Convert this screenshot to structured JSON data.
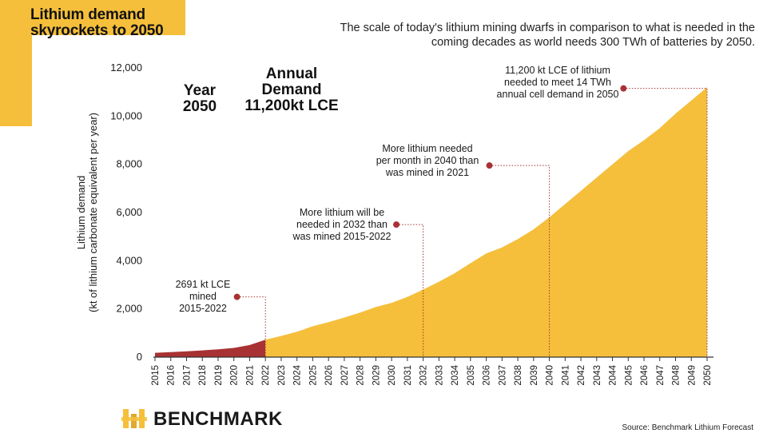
{
  "header": {
    "title": "Lithium demand\nskyrockets to 2050",
    "subtitle": "The scale of today's lithium mining dwarfs in comparison to what is needed in the\ncoming decades as world needs 300 TWh of batteries by 2050."
  },
  "colors": {
    "accent": "#F5BF3B",
    "historical": "#A83233",
    "forecast": "#F5BF3B",
    "marker": "#A83233"
  },
  "chart_data": {
    "type": "area",
    "ylabel": "Lithium demand\n(kt of lithium carbonate equivalent per year)",
    "ylim": [
      0,
      12000
    ],
    "yticks": [
      0,
      2000,
      4000,
      6000,
      8000,
      10000,
      12000
    ],
    "ytick_labels": [
      "0",
      "2,000",
      "4,000",
      "6,000",
      "8,000",
      "10,000",
      "12,000"
    ],
    "x": [
      2015,
      2016,
      2017,
      2018,
      2019,
      2020,
      2021,
      2022,
      2023,
      2024,
      2025,
      2026,
      2027,
      2028,
      2029,
      2030,
      2031,
      2032,
      2033,
      2034,
      2035,
      2036,
      2037,
      2038,
      2039,
      2040,
      2041,
      2042,
      2043,
      2044,
      2045,
      2046,
      2047,
      2048,
      2049,
      2050
    ],
    "values": [
      180,
      210,
      240,
      280,
      320,
      380,
      500,
      720,
      880,
      1050,
      1280,
      1450,
      1640,
      1850,
      2080,
      2250,
      2500,
      2800,
      3130,
      3480,
      3900,
      4300,
      4550,
      4900,
      5300,
      5800,
      6350,
      6900,
      7450,
      8000,
      8550,
      9000,
      9500,
      10100,
      10650,
      11200
    ],
    "series": [
      {
        "name": "",
        "from": 2015,
        "to": 2022,
        "color": "#A83233"
      },
      {
        "name": "",
        "from": 2022,
        "to": 2050,
        "color": "#F5BF3B"
      }
    ],
    "annotations": [
      {
        "text": "Year\n2050",
        "align": "center"
      },
      {
        "text": "Annual\nDemand\n11,200kt LCE",
        "align": "center"
      },
      {
        "text": "2691 kt LCE\nmined\n2015-2022",
        "year": 2022,
        "marker_x": 2020.2,
        "marker_y": 2500
      },
      {
        "text": "More lithium will be\nneeded in 2032 than\nwas mined 2015-2022",
        "year": 2032,
        "marker_x": 2030.3,
        "marker_y": 5500
      },
      {
        "text": "More lithium needed\nper month in 2040 than\nwas mined in 2021",
        "year": 2040,
        "marker_x": 2036.2,
        "marker_y": 7950
      },
      {
        "text": "11,200 kt LCE of lithium\nneeded to meet 14 TWh\nannual cell demand in 2050",
        "year": 2050,
        "marker_x": 2044.7,
        "marker_y": 11150
      }
    ],
    "grid": false,
    "legend": "none"
  },
  "footer": {
    "brand": "BENCHMARK",
    "logo_icon": "benchmark-logo-icon",
    "source": "Source: Benchmark Lithium Forecast"
  }
}
